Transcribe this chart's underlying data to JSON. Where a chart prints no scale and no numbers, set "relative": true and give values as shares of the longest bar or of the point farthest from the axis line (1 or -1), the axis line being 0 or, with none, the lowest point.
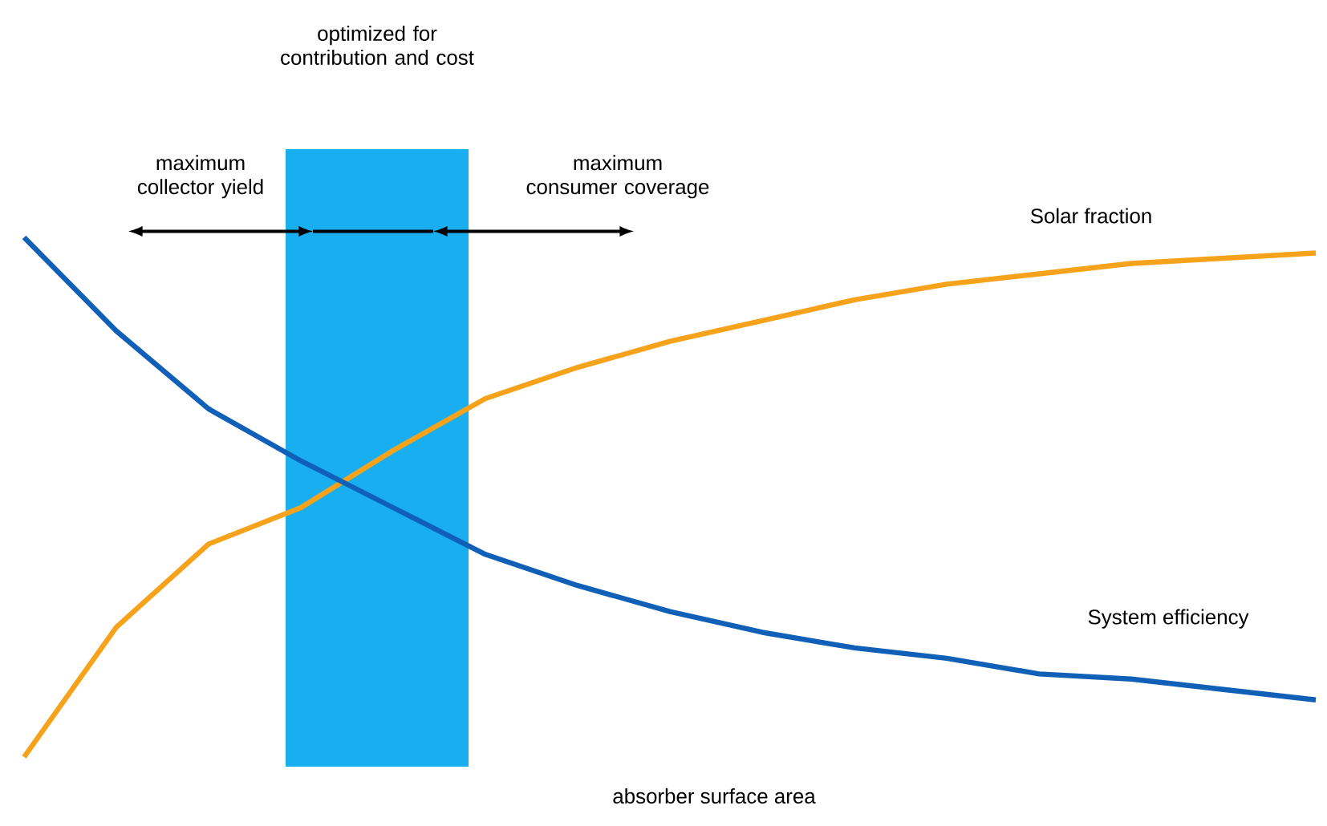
{
  "chart_data": {
    "type": "line",
    "relative": true,
    "xlabel": "absorber surface area",
    "categories": [
      null,
      null,
      null,
      null,
      null,
      null,
      null,
      null,
      null,
      null,
      null,
      null,
      null,
      null,
      null
    ],
    "series": [
      {
        "name": "Solar fraction",
        "color": "#f7a21b",
        "values": [
          0,
          0.25,
          0.41,
          0.48,
          0.59,
          0.69,
          0.75,
          0.8,
          0.84,
          0.88,
          0.91,
          0.93,
          0.95,
          0.96,
          0.97
        ]
      },
      {
        "name": "System efficiency",
        "color": "#1060b8",
        "values": [
          1.0,
          0.82,
          0.67,
          0.57,
          0.48,
          0.39,
          0.33,
          0.28,
          0.24,
          0.21,
          0.19,
          0.16,
          0.15,
          0.13,
          0.11
        ]
      }
    ],
    "annotations": [
      "optimized for contribution and cost",
      "maximum collector yield",
      "maximum consumer coverage"
    ],
    "marker": "none",
    "line_style": "solid"
  }
}
